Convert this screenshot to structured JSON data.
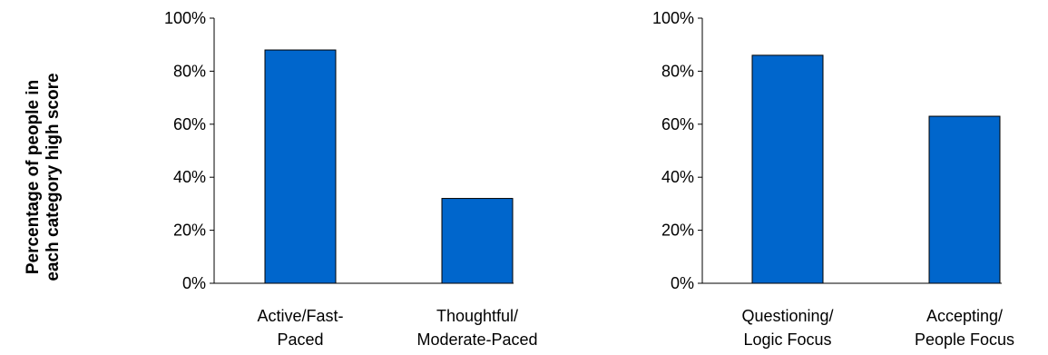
{
  "ylabel_lines": [
    "Percentage of people in",
    "each category high score"
  ],
  "bar_color": "#0066CC",
  "chart_data": [
    {
      "type": "bar",
      "categories": [
        [
          "Active/Fast-",
          "Paced"
        ],
        [
          "Thoughtful/",
          "Moderate-Paced"
        ]
      ],
      "values": [
        88,
        32
      ],
      "ylim": [
        0,
        100
      ],
      "yticks": [
        0,
        20,
        40,
        60,
        80,
        100
      ],
      "ytick_labels": [
        "0%",
        "20%",
        "40%",
        "60%",
        "80%",
        "100%"
      ],
      "grid": false,
      "legend": "none"
    },
    {
      "type": "bar",
      "categories": [
        [
          "Questioning/",
          "Logic Focus"
        ],
        [
          "Accepting/",
          "People Focus"
        ]
      ],
      "values": [
        86,
        63
      ],
      "ylim": [
        0,
        100
      ],
      "yticks": [
        0,
        20,
        40,
        60,
        80,
        100
      ],
      "ytick_labels": [
        "0%",
        "20%",
        "40%",
        "60%",
        "80%",
        "100%"
      ],
      "grid": false,
      "legend": "none"
    }
  ]
}
